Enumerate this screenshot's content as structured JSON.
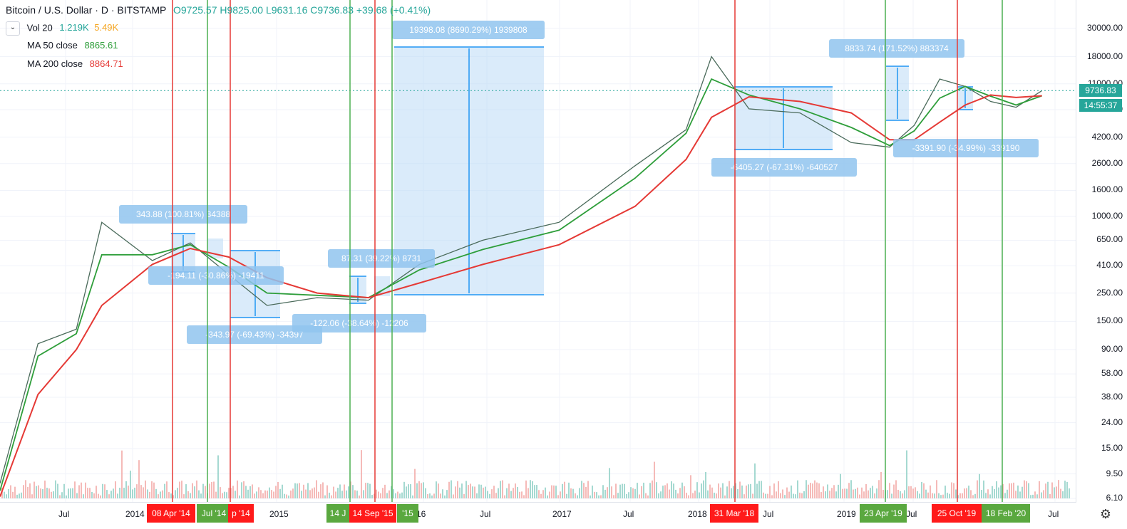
{
  "header": {
    "title": "Bitcoin / U.S. Dollar · D · BITSTAMP",
    "ohlc": "O9725.57 H9825.00 L9631.16 C9736.83 +39.68 (+0.41%)"
  },
  "indicators": [
    {
      "label": "Vol 20",
      "values": [
        "1.219K",
        "5.49K"
      ],
      "colors": [
        "#26a69a",
        "#f5a623"
      ]
    },
    {
      "label": "MA 50 close",
      "values": [
        "8865.61"
      ],
      "colors": [
        "#2e9e3a"
      ]
    },
    {
      "label": "MA 200 close",
      "values": [
        "8864.71"
      ],
      "colors": [
        "#e53935"
      ]
    }
  ],
  "price_axis": {
    "labels": [
      "30000.00",
      "18000.00",
      "11000.00",
      "6900.00",
      "4200.00",
      "2600.00",
      "1600.00",
      "1000.00",
      "650.00",
      "410.00",
      "250.00",
      "150.00",
      "90.00",
      "58.00",
      "38.00",
      "24.00",
      "15.00",
      "9.50",
      "6.10"
    ],
    "current_price": "9736.83",
    "countdown": "14:55:37"
  },
  "time_axis": {
    "labels": [
      "Jul",
      "2014",
      "2015",
      "16",
      "Jul",
      "2017",
      "Jul",
      "2018",
      "Jul",
      "2019",
      "Jul",
      "Jul"
    ]
  },
  "markers": [
    {
      "text": "08 Apr '14",
      "color": "red"
    },
    {
      "text": "Jul '14",
      "color": "green"
    },
    {
      "text": "p '14",
      "color": "red"
    },
    {
      "text": "14 J",
      "color": "green"
    },
    {
      "text": "14 Sep '15",
      "color": "red"
    },
    {
      "text": "'15",
      "color": "green"
    },
    {
      "text": "31 Mar '18",
      "color": "red"
    },
    {
      "text": "23 Apr '19",
      "color": "green"
    },
    {
      "text": "25 Oct '19",
      "color": "red"
    },
    {
      "text": "18 Feb '20",
      "color": "green"
    }
  ],
  "measurements": [
    "343.88 (100.81%) 34388",
    "-194.11 (-30.86%) -19411",
    "-343.97 (-69.43%) -34397",
    "87.31 (39.22%) 8731",
    "-122.06 (-38.64%) -12206",
    "19398.08 (8690.29%) 1939808",
    "-6405.27 (-67.31%) -640527",
    "8833.74 (171.52%) 883374",
    "-3391.90 (-34.99%) -339190"
  ],
  "chart_data": {
    "type": "line",
    "title": "Bitcoin / U.S. Dollar · D · BITSTAMP",
    "y_scale": "log",
    "ylim": [
      6.1,
      47000
    ],
    "x": [
      "2013-04",
      "2013-07",
      "2013-10",
      "2013-12",
      "2014-04",
      "2014-07",
      "2014-10",
      "2015-01",
      "2015-05",
      "2015-09",
      "2016-01",
      "2016-06",
      "2016-12",
      "2017-06",
      "2017-10",
      "2017-12",
      "2018-03",
      "2018-07",
      "2018-11",
      "2019-02",
      "2019-04",
      "2019-06",
      "2019-08",
      "2019-10",
      "2019-12",
      "2020-02"
    ],
    "series": [
      {
        "name": "",
        "values": [
          8,
          100,
          130,
          900,
          450,
          620,
          350,
          200,
          230,
          220,
          420,
          650,
          900,
          2500,
          4800,
          18000,
          7000,
          6500,
          3800,
          3500,
          5200,
          12000,
          10500,
          8000,
          7200,
          9736.83
        ]
      },
      {
        "name": "MA 50 close",
        "values": [
          7,
          80,
          120,
          500,
          500,
          600,
          400,
          250,
          240,
          230,
          380,
          550,
          780,
          2000,
          4500,
          12000,
          9000,
          7000,
          5000,
          3600,
          4700,
          8500,
          10500,
          8800,
          7500,
          8865.61
        ]
      },
      {
        "name": "MA 200 close",
        "values": [
          6.3,
          40,
          90,
          200,
          420,
          560,
          480,
          330,
          250,
          230,
          300,
          420,
          600,
          1200,
          2800,
          6000,
          8700,
          8000,
          6500,
          4000,
          4000,
          5500,
          7500,
          9000,
          8600,
          8864.71
        ]
      }
    ],
    "annotations": [
      "343.88 (100.81%) 34388",
      "-194.11 (-30.86%) -19411",
      "-343.97 (-69.43%) -34397",
      "87.31 (39.22%) 8731",
      "-122.06 (-38.64%) -12206",
      "19398.08 (8690.29%) 1939808",
      "-6405.27 (-67.31%) -640527",
      "8833.74 (171.52%) 883374",
      "-3391.90 (-34.99%) -339190"
    ],
    "grid": true
  }
}
